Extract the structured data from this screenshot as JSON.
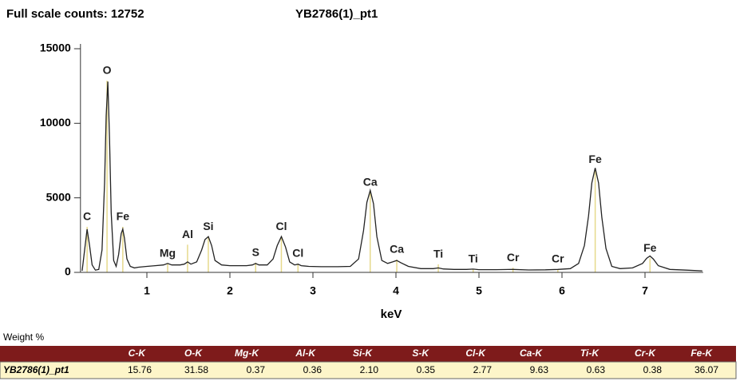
{
  "chart_data": {
    "type": "line",
    "title": "Full scale counts: 12752",
    "subtitle": "YB2786(1)_pt1",
    "x_label": "keV",
    "xlim": [
      0.2,
      7.7
    ],
    "ylim": [
      0,
      15000
    ],
    "xticks": [
      1,
      2,
      3,
      4,
      5,
      6,
      7
    ],
    "yticks": [
      0,
      5000,
      10000,
      15000
    ],
    "color": "#222222",
    "marker_color": "#e6d98c",
    "x": [
      0.22,
      0.25,
      0.28,
      0.31,
      0.34,
      0.38,
      0.42,
      0.46,
      0.49,
      0.51,
      0.53,
      0.55,
      0.57,
      0.6,
      0.63,
      0.66,
      0.69,
      0.71,
      0.73,
      0.76,
      0.8,
      0.85,
      0.9,
      1.0,
      1.1,
      1.2,
      1.25,
      1.3,
      1.4,
      1.45,
      1.49,
      1.53,
      1.6,
      1.66,
      1.7,
      1.74,
      1.78,
      1.82,
      1.9,
      2.0,
      2.1,
      2.2,
      2.27,
      2.31,
      2.35,
      2.45,
      2.52,
      2.57,
      2.62,
      2.67,
      2.72,
      2.78,
      2.82,
      2.86,
      2.95,
      3.1,
      3.3,
      3.45,
      3.55,
      3.61,
      3.65,
      3.69,
      3.73,
      3.77,
      3.83,
      3.9,
      3.96,
      4.01,
      4.06,
      4.15,
      4.3,
      4.45,
      4.51,
      4.57,
      4.7,
      4.85,
      4.93,
      5.0,
      5.2,
      5.41,
      5.6,
      5.8,
      5.95,
      6.1,
      6.2,
      6.27,
      6.32,
      6.36,
      6.4,
      6.44,
      6.48,
      6.53,
      6.6,
      6.7,
      6.85,
      6.97,
      7.02,
      7.06,
      7.1,
      7.16,
      7.3,
      7.5,
      7.69
    ],
    "values": [
      100,
      1500,
      2900,
      1800,
      500,
      150,
      200,
      1500,
      6000,
      10500,
      12800,
      9000,
      4000,
      800,
      400,
      1200,
      2600,
      2900,
      2300,
      900,
      400,
      300,
      350,
      400,
      450,
      500,
      600,
      500,
      500,
      550,
      700,
      550,
      700,
      1500,
      2200,
      2400,
      1800,
      800,
      500,
      450,
      450,
      450,
      500,
      600,
      500,
      500,
      900,
      1800,
      2400,
      1700,
      700,
      500,
      550,
      450,
      400,
      380,
      380,
      400,
      900,
      2800,
      4700,
      5500,
      4600,
      2400,
      800,
      600,
      700,
      800,
      650,
      400,
      250,
      250,
      300,
      230,
      200,
      200,
      220,
      180,
      180,
      200,
      160,
      170,
      200,
      250,
      600,
      1800,
      3800,
      6000,
      7000,
      6000,
      3700,
      1600,
      400,
      250,
      300,
      600,
      950,
      1100,
      900,
      450,
      200,
      150,
      100
    ],
    "annotations": [
      {
        "text": "C",
        "x": 0.28,
        "y": 3700
      },
      {
        "text": "O",
        "x": 0.52,
        "y": 13500
      },
      {
        "text": "Fe",
        "x": 0.71,
        "y": 3700
      },
      {
        "text": "Mg",
        "x": 1.25,
        "y": 1230
      },
      {
        "text": "Al",
        "x": 1.49,
        "y": 2500
      },
      {
        "text": "Si",
        "x": 1.74,
        "y": 3050
      },
      {
        "text": "S",
        "x": 2.31,
        "y": 1290
      },
      {
        "text": "Cl",
        "x": 2.62,
        "y": 3050
      },
      {
        "text": "Cl",
        "x": 2.82,
        "y": 1230
      },
      {
        "text": "Ca",
        "x": 3.69,
        "y": 6000
      },
      {
        "text": "Ca",
        "x": 4.01,
        "y": 1500
      },
      {
        "text": "Ti",
        "x": 4.51,
        "y": 1180
      },
      {
        "text": "Ti",
        "x": 4.93,
        "y": 860
      },
      {
        "text": "Cr",
        "x": 5.41,
        "y": 960
      },
      {
        "text": "Cr",
        "x": 5.95,
        "y": 860
      },
      {
        "text": "Fe",
        "x": 6.4,
        "y": 7550
      },
      {
        "text": "Fe",
        "x": 7.06,
        "y": 1600
      }
    ]
  },
  "table": {
    "title": "Weight %",
    "header": [
      "C-K",
      "O-K",
      "Mg-K",
      "Al-K",
      "Si-K",
      "S-K",
      "Cl-K",
      "Ca-K",
      "Ti-K",
      "Cr-K",
      "Fe-K"
    ],
    "rows": [
      [
        "YB2786(1)_pt1",
        "15.76",
        "31.58",
        "0.37",
        "0.36",
        "2.10",
        "0.35",
        "2.77",
        "9.63",
        "0.63",
        "0.38",
        "36.07"
      ]
    ]
  }
}
